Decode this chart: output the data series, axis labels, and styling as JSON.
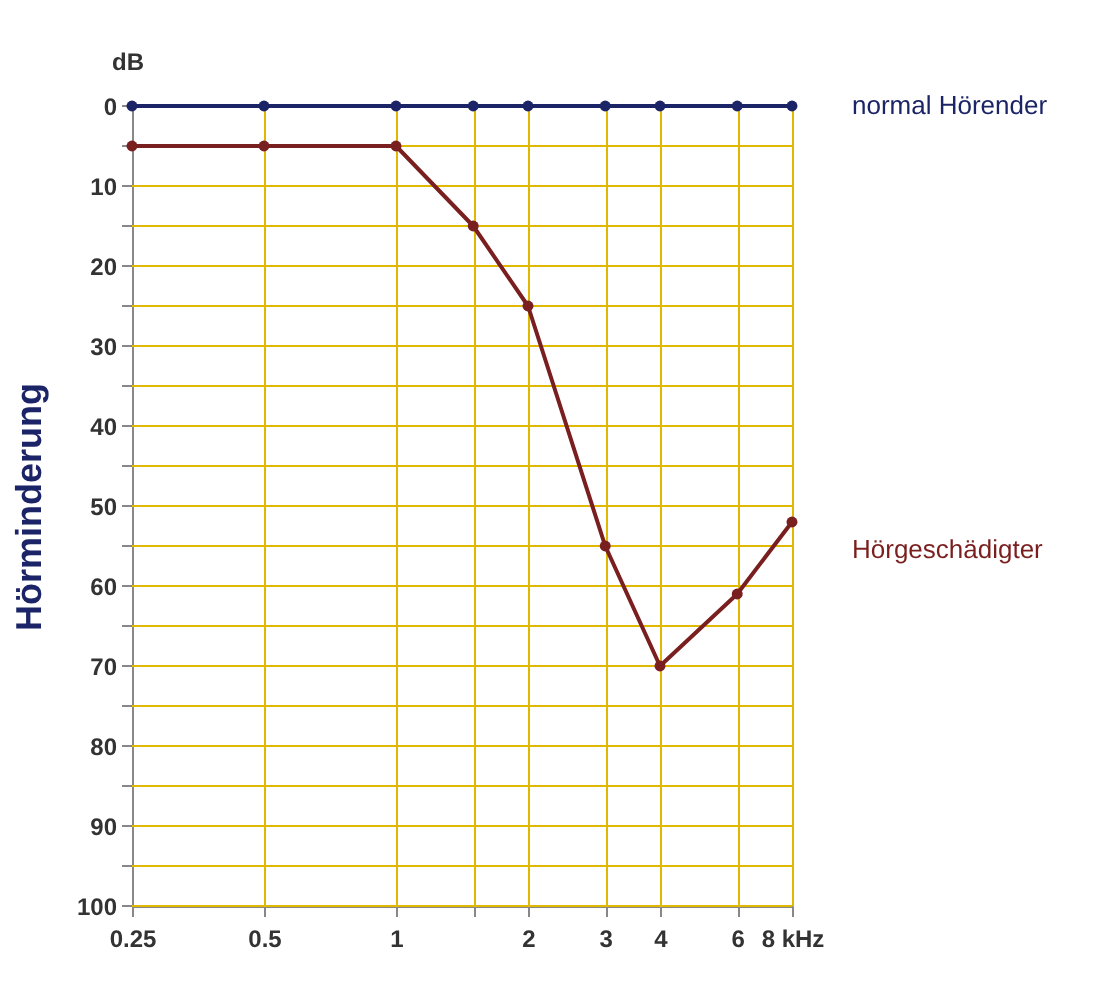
{
  "chart_data": {
    "type": "line",
    "ylabel": "Hörminderung",
    "annotations": [
      "dB"
    ],
    "x": [
      0.25,
      0.5,
      1,
      1.5,
      2,
      3,
      4,
      6,
      8
    ],
    "series": [
      {
        "name": "normal Hörender",
        "color": "#1b2466",
        "values": [
          0,
          0,
          0,
          0,
          0,
          0,
          0,
          0,
          0
        ]
      },
      {
        "name": "Hörgeschädigter",
        "color": "#7a1f1f",
        "values": [
          5,
          5,
          5,
          15,
          25,
          55,
          70,
          61,
          52
        ]
      }
    ],
    "log": "x",
    "xlim": [
      0.25,
      8
    ],
    "ylim": [
      100,
      0
    ],
    "xticks": [
      0.25,
      0.5,
      1,
      {
        "value": 1.5,
        "label": null
      },
      2,
      3,
      4,
      6,
      {
        "value": 8,
        "label": "8 kHz"
      }
    ],
    "yticks": [
      0,
      {
        "value": 5,
        "label": null
      },
      10,
      {
        "value": 15,
        "label": null
      },
      20,
      {
        "value": 25,
        "label": null
      },
      30,
      {
        "value": 35,
        "label": null
      },
      40,
      {
        "value": 45,
        "label": null
      },
      50,
      {
        "value": 55,
        "label": null
      },
      60,
      {
        "value": 65,
        "label": null
      },
      70,
      {
        "value": 75,
        "label": null
      },
      80,
      {
        "value": 85,
        "label": null
      },
      90,
      {
        "value": 95,
        "label": null
      },
      100
    ],
    "grid": true,
    "marker": "circle",
    "legend": false
  }
}
